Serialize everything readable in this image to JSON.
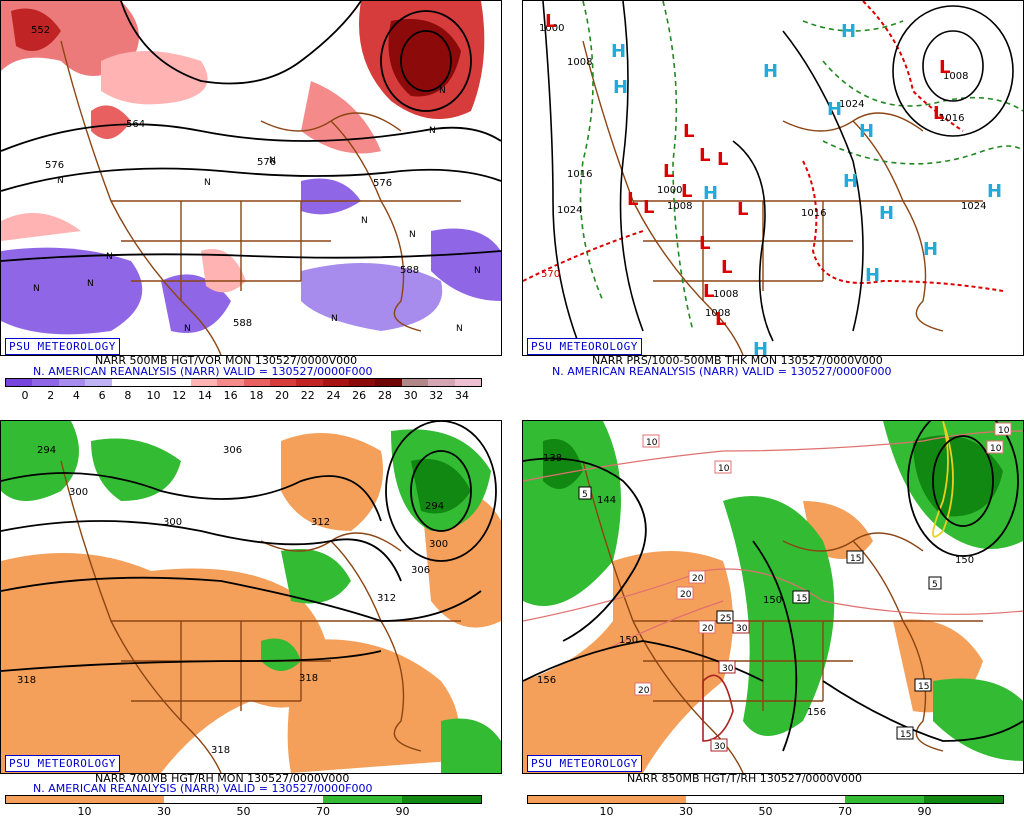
{
  "psu_label": "PSU METEOROLOGY",
  "panels": [
    {
      "caption1": "NARR 500MB HGT/VOR MON 130527/0000V000",
      "caption2": "N. AMERICAN REANALYSIS (NARR) VALID = 130527/0000F000",
      "colorbar_ticks": [
        "0",
        "2",
        "4",
        "6",
        "8",
        "10",
        "12",
        "14",
        "16",
        "18",
        "20",
        "22",
        "24",
        "26",
        "28",
        "30",
        "32",
        "34"
      ],
      "contour_labels": [
        "576",
        "564",
        "576",
        "588",
        "552",
        "588",
        "576"
      ],
      "symbols": [
        "N",
        "N",
        "N",
        "N",
        "N",
        "N",
        "N",
        "N",
        "N",
        "N",
        "N",
        "N",
        "N",
        "N"
      ],
      "colors": [
        "#7744dd",
        "#8f66e6",
        "#a78cee",
        "#bfb3f5",
        "#ffffff",
        "#ffffff",
        "#ffffff",
        "#ffb3b3",
        "#f58a8a",
        "#e86060",
        "#d63c3c",
        "#c02424",
        "#a81414",
        "#8c0a0a",
        "#6f0505",
        "#b08888",
        "#d4a6b4",
        "#ecc0d0"
      ]
    },
    {
      "caption1": "NARR PRS/1000-500MB THK MON 130527/0000V000",
      "caption2": "N. AMERICAN REANALYSIS (NARR) VALID = 130527/0000F000",
      "isobar_labels": [
        "1000",
        "1008",
        "1016",
        "1024",
        "1016",
        "1024",
        "1008",
        "1008",
        "1008",
        "1000",
        "1016",
        "1024",
        "1008",
        "570"
      ],
      "highs": [
        "H",
        "H",
        "H",
        "H",
        "H",
        "H",
        "H",
        "H",
        "H",
        "H",
        "H",
        "H",
        "H"
      ],
      "lows": [
        "L",
        "L",
        "L",
        "L",
        "L",
        "L",
        "L",
        "L",
        "L",
        "L",
        "L",
        "L",
        "L",
        "L",
        "L"
      ],
      "colors": {
        "high": "#22aadd",
        "low": "#dd0000",
        "thickness_warm": "#dd0000",
        "thickness_cool": "#228822"
      }
    },
    {
      "caption1": "NARR 700MB HGT/RH MON 130527/0000V000",
      "caption2": "N. AMERICAN REANALYSIS (NARR) VALID = 130527/0000F000",
      "colorbar_ticks": [
        "10",
        "30",
        "50",
        "70",
        "90"
      ],
      "contour_labels": [
        "294",
        "306",
        "300",
        "300",
        "312",
        "294",
        "300",
        "306",
        "312",
        "318",
        "318",
        "318"
      ],
      "colors": {
        "dry": "#f4a05a",
        "moist": "#33bb33",
        "very_moist": "#118811"
      }
    },
    {
      "caption1": "NARR 850MB HGT/T/RH 130527/0000V000",
      "colorbar_ticks": [
        "10",
        "30",
        "50",
        "70",
        "90"
      ],
      "contour_labels": [
        "138",
        "144",
        "150",
        "150",
        "156",
        "156",
        "150"
      ],
      "temp_labels": [
        "10",
        "10",
        "10",
        "10",
        "5",
        "5",
        "15",
        "15",
        "20",
        "20",
        "20",
        "25",
        "30",
        "30",
        "20",
        "30",
        "15",
        "15"
      ],
      "colors": {
        "dry": "#f4a05a",
        "moist": "#33bb33",
        "very_moist": "#118811"
      }
    }
  ]
}
